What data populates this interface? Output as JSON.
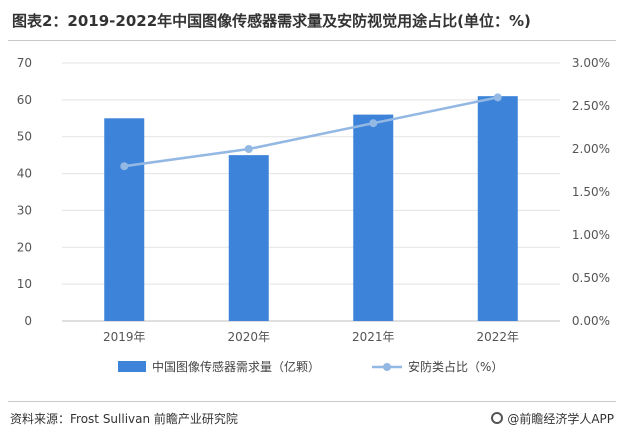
{
  "title": "图表2：2019-2022年中国图像传感器需求量及安防视觉用途占比(单位：%)",
  "chart_data": {
    "type": "bar",
    "categories": [
      "2019年",
      "2020年",
      "2021年",
      "2022年"
    ],
    "series": [
      {
        "name": "中国图像传感器需求量（亿颗）",
        "type": "bar",
        "axis": "left",
        "values": [
          55,
          45,
          56,
          61
        ],
        "color": "#3d83d9"
      },
      {
        "name": "安防类占比（%）",
        "type": "line",
        "axis": "right",
        "values": [
          1.8,
          2.0,
          2.3,
          2.6
        ],
        "color": "#93b8e3"
      }
    ],
    "ylim_left": [
      0,
      70
    ],
    "yticks_left": [
      "0",
      "10",
      "20",
      "30",
      "40",
      "50",
      "60",
      "70"
    ],
    "ylim_right": [
      0,
      3
    ],
    "yticks_right": [
      "0.00%",
      "0.50%",
      "1.00%",
      "1.50%",
      "2.00%",
      "2.50%",
      "3.00%"
    ],
    "grid": true,
    "legend_position": "bottom"
  },
  "footer": {
    "source": "资料来源：Frost Sullivan 前瞻产业研究院",
    "brand": "@前瞻经济学人APP"
  }
}
